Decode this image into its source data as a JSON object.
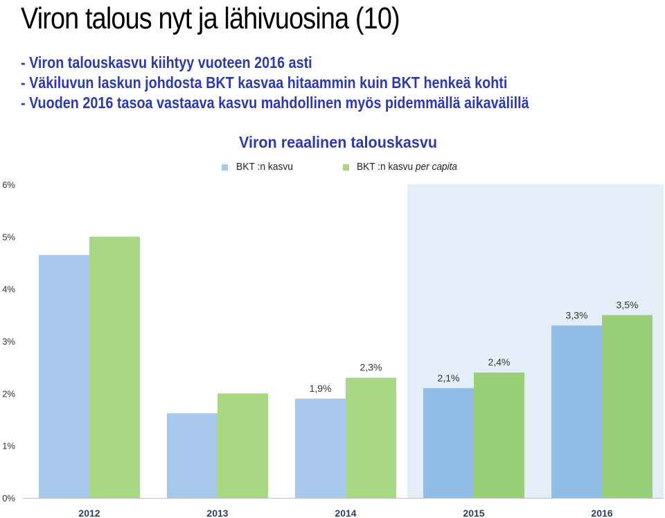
{
  "slide": {
    "title": "Viron talous nyt ja lähivuosina (10)",
    "bullets": [
      "- Viron talouskasvu kiihtyy vuoteen 2016 asti",
      "- Väkiluvun laskun johdosta BKT kasvaa hitaammin kuin BKT henkeä kohti",
      "- Vuoden 2016 tasoa vastaava kasvu mahdollinen myös pidemmällä aikavälillä"
    ]
  },
  "colors": {
    "title_blue": "#2e3aa8",
    "bkt_actual": "#a9c9ec",
    "percapita_actual": "#a9d884",
    "bkt_forecast": "#92bde6",
    "percapita_forecast": "#99cf79",
    "forecast_bg": "#e3eef8"
  },
  "chart_data": {
    "type": "bar",
    "title": "Viron reaalinen talouskasvu",
    "categories": [
      "2012",
      "2013",
      "2014",
      "2015",
      "2016"
    ],
    "series": [
      {
        "name": "BKT :n kasvu",
        "values": [
          4.65,
          1.62,
          1.9,
          2.1,
          3.3
        ],
        "labels": [
          "",
          "",
          "1,9%",
          "2,1%",
          "3,3%"
        ]
      },
      {
        "name_main": "BKT :n kasvu ",
        "name_italic": "per capita",
        "values": [
          5.0,
          2.0,
          2.3,
          2.4,
          3.5
        ],
        "labels": [
          "",
          "",
          "2,3%",
          "2,4%",
          "3,5%"
        ]
      }
    ],
    "forecast_categories": [
      "2015",
      "2016"
    ],
    "ylim": [
      0,
      6
    ],
    "yticks": [
      "0%",
      "1%",
      "2%",
      "3%",
      "4%",
      "5%",
      "6%"
    ],
    "legend": "top",
    "grid": false
  }
}
